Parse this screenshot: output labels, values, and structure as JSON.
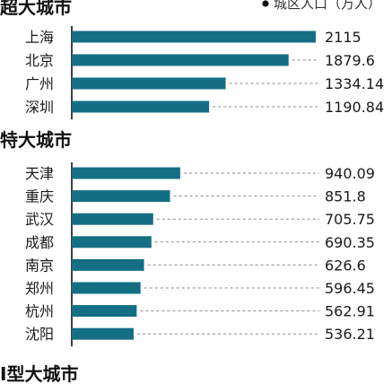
{
  "chart_data": {
    "type": "bar",
    "orientation": "horizontal",
    "legend": {
      "label": "城区人口（万人）",
      "placement": "top-right"
    },
    "groups": [
      {
        "title": "超大城市",
        "categories": [
          "上海",
          "北京",
          "广州",
          "深圳"
        ],
        "values": [
          2115,
          1879.6,
          1334.14,
          1190.84
        ],
        "labels": [
          "2115",
          "1879.6",
          "1334.14",
          "1190.84"
        ]
      },
      {
        "title": "特大城市",
        "categories": [
          "天津",
          "重庆",
          "武汉",
          "成都",
          "南京",
          "郑州",
          "杭州",
          "沈阳"
        ],
        "values": [
          940.09,
          851.8,
          705.75,
          690.35,
          626.6,
          596.45,
          562.91,
          536.21
        ],
        "labels": [
          "940.09",
          "851.8",
          "705.75",
          "690.35",
          "626.6",
          "596.45",
          "562.91",
          "536.21"
        ]
      },
      {
        "title": "Ⅰ型大城市",
        "categories": [],
        "values": [],
        "labels": []
      }
    ],
    "colors": {
      "bar": "#146f84",
      "leader": "#8a8a8a"
    },
    "grid": false
  }
}
